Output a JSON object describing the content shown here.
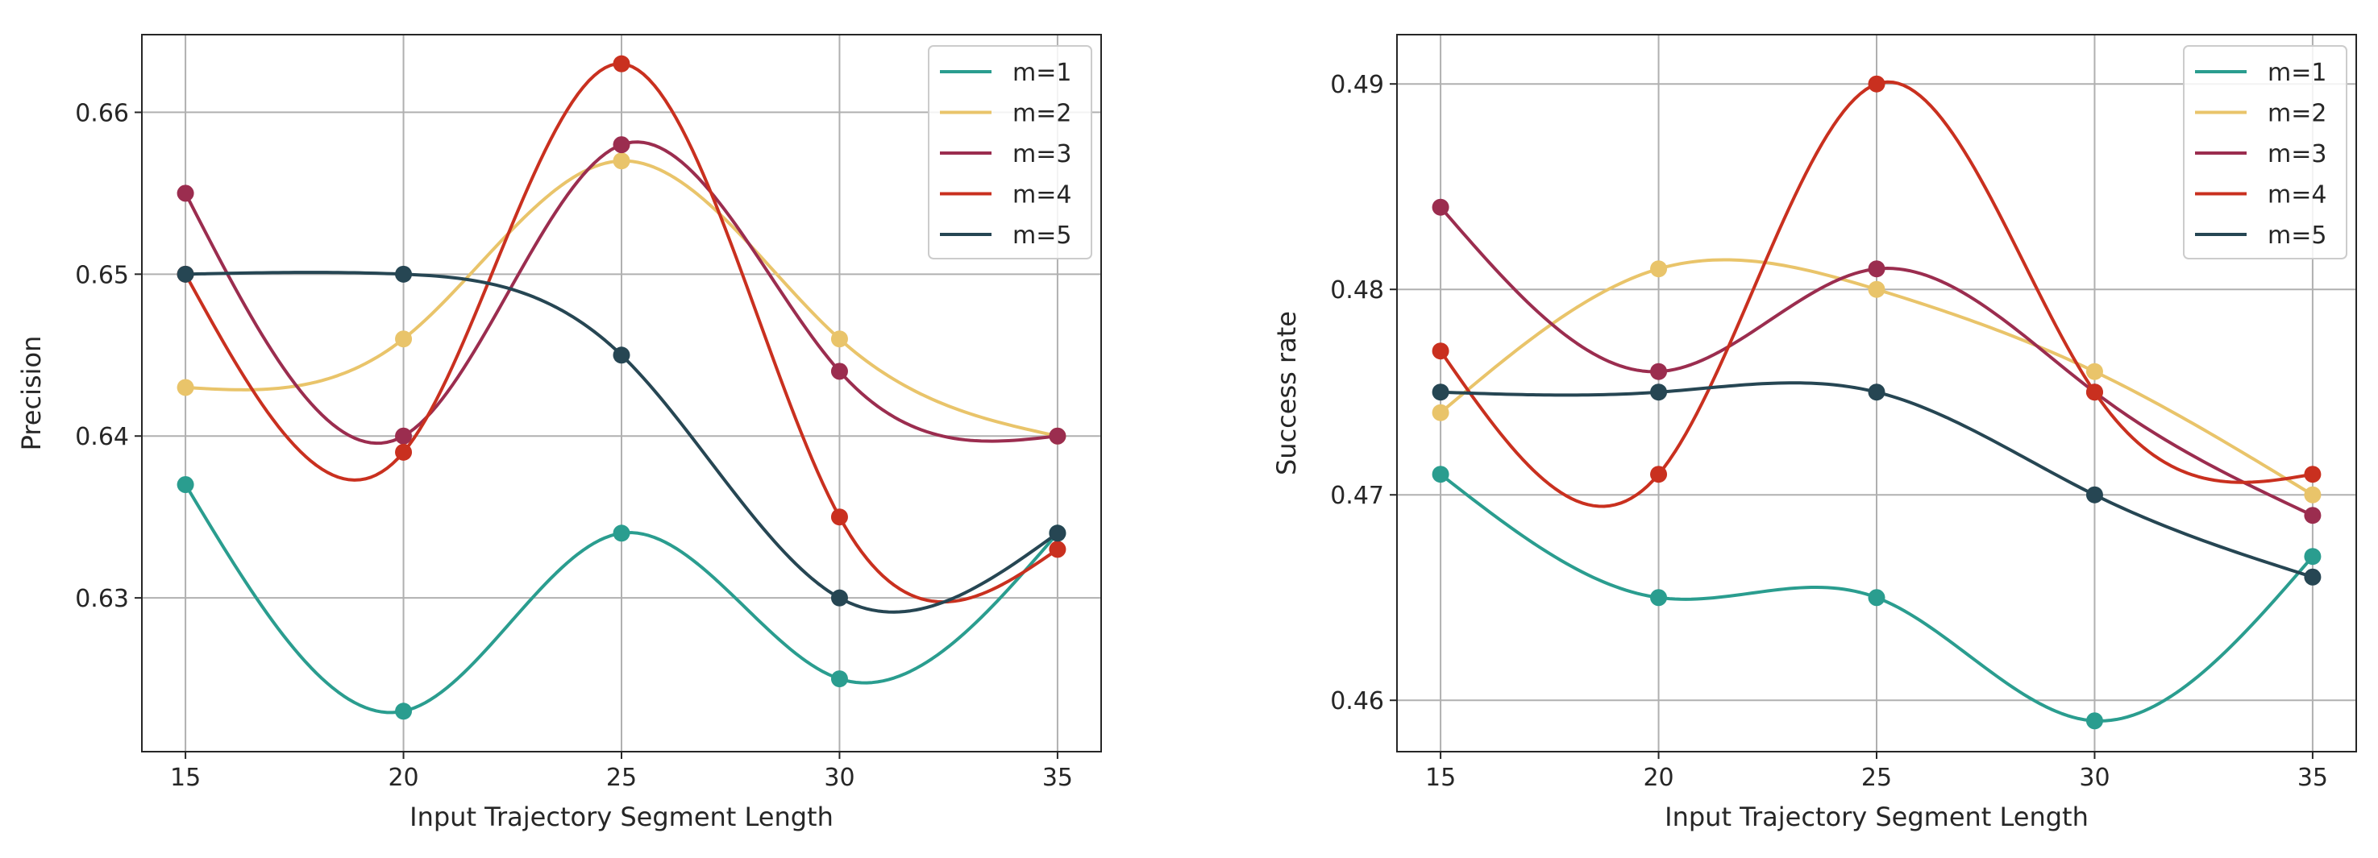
{
  "chart_data": [
    {
      "type": "line",
      "title": "",
      "xlabel": "Input Trajectory Segment Length",
      "ylabel": "Precision",
      "x": [
        15,
        20,
        25,
        30,
        35
      ],
      "xticks": [
        "15",
        "20",
        "25",
        "30",
        "35"
      ],
      "yticks": [
        "0.63",
        "0.64",
        "0.65",
        "0.66"
      ],
      "xlim": [
        14,
        36
      ],
      "ylim": [
        0.6205,
        0.6648
      ],
      "grid": true,
      "legend_position": "top-right",
      "series": [
        {
          "name": "m=1",
          "color": "#2a9d8f",
          "values": [
            0.637,
            0.623,
            0.634,
            0.625,
            0.634
          ]
        },
        {
          "name": "m=2",
          "color": "#e9c46a",
          "values": [
            0.643,
            0.646,
            0.657,
            0.646,
            0.64
          ]
        },
        {
          "name": "m=3",
          "color": "#9b2d4f",
          "values": [
            0.655,
            0.64,
            0.658,
            0.644,
            0.64
          ]
        },
        {
          "name": "m=4",
          "color": "#c9301f",
          "values": [
            0.65,
            0.639,
            0.663,
            0.635,
            0.633
          ]
        },
        {
          "name": "m=5",
          "color": "#264653",
          "values": [
            0.65,
            0.65,
            0.645,
            0.63,
            0.634
          ]
        }
      ]
    },
    {
      "type": "line",
      "title": "",
      "xlabel": "Input Trajectory Segment Length",
      "ylabel": "Success rate",
      "x": [
        15,
        20,
        25,
        30,
        35
      ],
      "xticks": [
        "15",
        "20",
        "25",
        "30",
        "35"
      ],
      "yticks": [
        "0.46",
        "0.47",
        "0.48",
        "0.49"
      ],
      "xlim": [
        14,
        36
      ],
      "ylim": [
        0.4575,
        0.4924
      ],
      "grid": true,
      "legend_position": "top-right",
      "series": [
        {
          "name": "m=1",
          "color": "#2a9d8f",
          "values": [
            0.471,
            0.465,
            0.465,
            0.459,
            0.467
          ]
        },
        {
          "name": "m=2",
          "color": "#e9c46a",
          "values": [
            0.474,
            0.481,
            0.48,
            0.476,
            0.47
          ]
        },
        {
          "name": "m=3",
          "color": "#9b2d4f",
          "values": [
            0.484,
            0.476,
            0.481,
            0.475,
            0.469
          ]
        },
        {
          "name": "m=4",
          "color": "#c9301f",
          "values": [
            0.477,
            0.471,
            0.49,
            0.475,
            0.471
          ]
        },
        {
          "name": "m=5",
          "color": "#264653",
          "values": [
            0.475,
            0.475,
            0.475,
            0.47,
            0.466
          ]
        }
      ]
    }
  ]
}
